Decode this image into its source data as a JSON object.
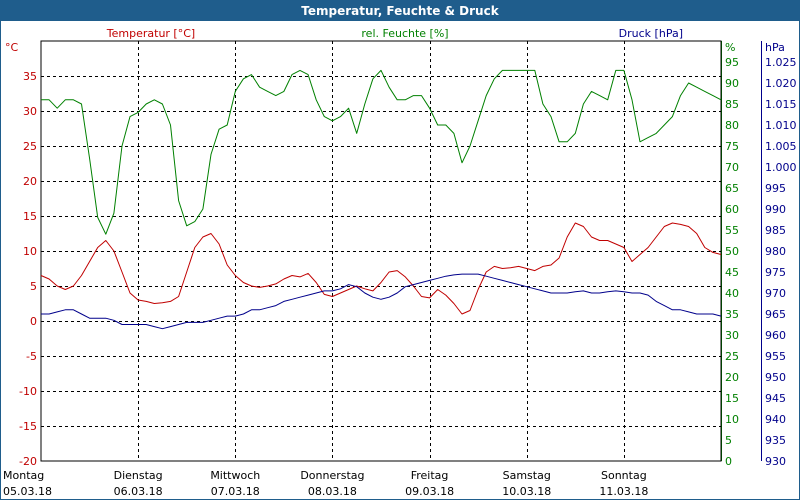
{
  "window": {
    "title": "Temperatur, Feuchte & Druck"
  },
  "colors": {
    "temperature": "#c00000",
    "humidity": "#008000",
    "pressure": "#00008b",
    "titlebar": "#1f5d8c",
    "grid": "#000000"
  },
  "chart_data": {
    "type": "line",
    "title": "Temperatur, Feuchte & Druck",
    "grid": true,
    "x_unit": "hours since 05.03.18 00:00",
    "xlim": [
      0,
      168
    ],
    "days": [
      {
        "day": "Montag",
        "date": "05.03.18"
      },
      {
        "day": "Dienstag",
        "date": "06.03.18"
      },
      {
        "day": "Mittwoch",
        "date": "07.03.18"
      },
      {
        "day": "Donnerstag",
        "date": "08.03.18"
      },
      {
        "day": "Freitag",
        "date": "09.03.18"
      },
      {
        "day": "Samstag",
        "date": "10.03.18"
      },
      {
        "day": "Sonntag",
        "date": "11.03.18"
      }
    ],
    "axes": {
      "temperature": {
        "label": "Temperatur [°C]",
        "unit": "°C",
        "ylim": [
          -20,
          40
        ],
        "ticks": [
          "35",
          "30",
          "25",
          "20",
          "15",
          "10",
          "5",
          "0",
          "-5",
          "-10",
          "-15",
          "-20"
        ]
      },
      "humidity": {
        "label": "rel. Feuchte [%]",
        "unit": "%",
        "ylim": [
          0,
          100
        ],
        "ticks": [
          "95",
          "90",
          "85",
          "80",
          "75",
          "70",
          "65",
          "60",
          "55",
          "50",
          "45",
          "40",
          "35",
          "30",
          "25",
          "20",
          "15",
          "10",
          "5",
          "0"
        ]
      },
      "pressure": {
        "label": "Druck [hPa]",
        "unit": "hPa",
        "ylim": [
          930,
          1030
        ],
        "ticks": [
          "1.025",
          "1.020",
          "1.015",
          "1.010",
          "1.005",
          "1.000",
          "995",
          "990",
          "985",
          "980",
          "975",
          "970",
          "965",
          "960",
          "955",
          "950",
          "945",
          "940",
          "935",
          "930"
        ]
      }
    },
    "series": [
      {
        "name": "Temperatur",
        "axis": "temperature",
        "x": [
          0,
          2,
          4,
          6,
          8,
          10,
          12,
          14,
          16,
          18,
          20,
          22,
          24,
          26,
          28,
          30,
          32,
          34,
          36,
          38,
          40,
          42,
          44,
          46,
          48,
          50,
          52,
          54,
          56,
          58,
          60,
          62,
          64,
          66,
          68,
          70,
          72,
          74,
          76,
          78,
          80,
          82,
          84,
          86,
          88,
          90,
          92,
          94,
          96,
          98,
          100,
          102,
          104,
          106,
          108,
          110,
          112,
          114,
          116,
          118,
          120,
          122,
          124,
          126,
          128,
          130,
          132,
          134,
          136,
          138,
          140,
          142,
          144,
          146,
          148,
          150,
          152,
          154,
          156,
          158,
          160,
          162,
          164,
          166,
          168
        ],
        "values": [
          6.5,
          6,
          5,
          4.5,
          5,
          6.5,
          8.5,
          10.5,
          11.5,
          10,
          7,
          4,
          3,
          2.8,
          2.5,
          2.6,
          2.8,
          3.5,
          7,
          10.5,
          12,
          12.5,
          11,
          8,
          6.5,
          5.5,
          5,
          4.8,
          5,
          5.3,
          6,
          6.5,
          6.3,
          6.8,
          5.5,
          3.8,
          3.5,
          4,
          4.5,
          5,
          4.6,
          4.3,
          5.5,
          7,
          7.2,
          6.3,
          5,
          3.5,
          3.3,
          4.5,
          3.7,
          2.5,
          1,
          1.5,
          4.5,
          7,
          7.8,
          7.5,
          7.6,
          7.8,
          7.5,
          7.2,
          7.8,
          8,
          9,
          12,
          14,
          13.5,
          12,
          11.5,
          11.5,
          11,
          10.5,
          8.5,
          9.5,
          10.5,
          12,
          13.5,
          14,
          13.8,
          13.5,
          12.5,
          10.5,
          9.8,
          9.5
        ]
      },
      {
        "name": "rel. Feuchte",
        "axis": "humidity",
        "x": [
          0,
          2,
          4,
          6,
          8,
          10,
          12,
          14,
          16,
          18,
          20,
          22,
          24,
          26,
          28,
          30,
          32,
          34,
          36,
          38,
          40,
          42,
          44,
          46,
          48,
          50,
          52,
          54,
          56,
          58,
          60,
          62,
          64,
          66,
          68,
          70,
          72,
          74,
          76,
          78,
          80,
          82,
          84,
          86,
          88,
          90,
          92,
          94,
          96,
          98,
          100,
          102,
          104,
          106,
          108,
          110,
          112,
          114,
          116,
          118,
          120,
          122,
          124,
          126,
          128,
          130,
          132,
          134,
          136,
          138,
          140,
          142,
          144,
          146,
          148,
          150,
          152,
          154,
          156,
          158,
          160,
          162,
          164,
          166,
          168
        ],
        "values": [
          86,
          86,
          84,
          86,
          86,
          85,
          72,
          58,
          54,
          59,
          75,
          82,
          83,
          85,
          86,
          85,
          80,
          62,
          56,
          57,
          60,
          73,
          79,
          80,
          88,
          91,
          92,
          89,
          88,
          87,
          88,
          92,
          93,
          92,
          86,
          82,
          81,
          82,
          84,
          78,
          85,
          91,
          93,
          89,
          86,
          86,
          87,
          87,
          84,
          80,
          80,
          78,
          71,
          75,
          81,
          87,
          91,
          93,
          93,
          93,
          93,
          93,
          85,
          82,
          76,
          76,
          78,
          85,
          88,
          87,
          86,
          93,
          93,
          86,
          76,
          77,
          78,
          80,
          82,
          87,
          90,
          89,
          88,
          87,
          86
        ]
      },
      {
        "name": "Druck",
        "axis": "pressure",
        "x": [
          0,
          2,
          4,
          6,
          8,
          10,
          12,
          14,
          16,
          18,
          20,
          22,
          24,
          26,
          28,
          30,
          32,
          34,
          36,
          38,
          40,
          42,
          44,
          46,
          48,
          50,
          52,
          54,
          56,
          58,
          60,
          62,
          64,
          66,
          68,
          70,
          72,
          74,
          76,
          78,
          80,
          82,
          84,
          86,
          88,
          90,
          92,
          94,
          96,
          98,
          100,
          102,
          104,
          106,
          108,
          110,
          112,
          114,
          116,
          118,
          120,
          122,
          124,
          126,
          128,
          130,
          132,
          134,
          136,
          138,
          140,
          142,
          144,
          146,
          148,
          150,
          152,
          154,
          156,
          158,
          160,
          162,
          164,
          166,
          168
        ],
        "values": [
          965,
          965,
          965.5,
          966,
          966,
          965,
          964,
          964,
          964,
          963.5,
          962.5,
          962.5,
          962.5,
          962.5,
          962,
          961.5,
          962,
          962.5,
          963,
          963,
          963,
          963.5,
          964,
          964.5,
          964.5,
          965,
          966,
          966,
          966.5,
          967,
          968,
          968.5,
          969,
          969.5,
          970,
          970.5,
          970.5,
          971,
          972,
          971.5,
          970,
          969,
          968.5,
          969,
          970,
          971.5,
          972,
          972.5,
          973,
          973.5,
          974,
          974.3,
          974.5,
          974.5,
          974.5,
          974,
          973.5,
          973,
          972.5,
          972,
          971.5,
          971,
          970.5,
          970,
          970,
          970,
          970.3,
          970.5,
          970,
          970,
          970.3,
          970.5,
          970.3,
          970,
          970,
          969.5,
          968,
          967,
          966,
          966,
          965.5,
          965,
          965,
          965,
          964.5
        ]
      }
    ]
  }
}
